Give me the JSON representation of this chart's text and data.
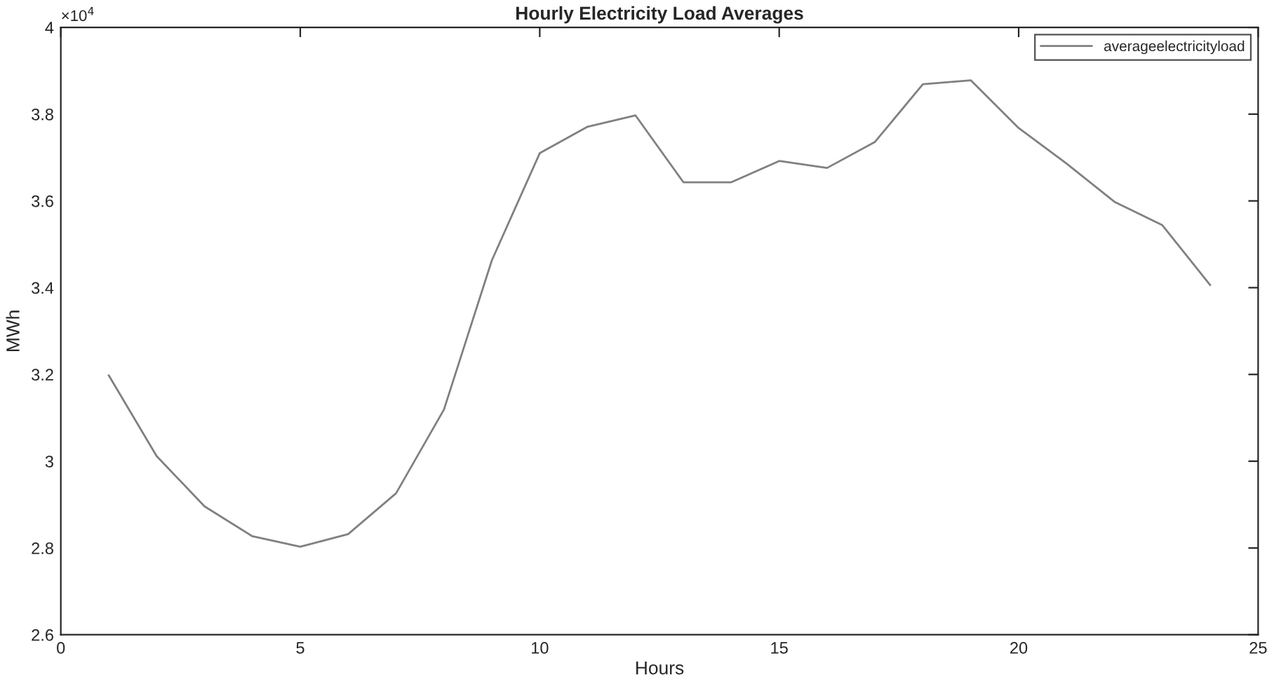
{
  "chart_data": {
    "type": "line",
    "title": "Hourly Electricity Load Averages",
    "xlabel": "Hours",
    "ylabel": "MWh",
    "annotations": [
      "×10$^{4}$"
    ],
    "x": [
      1,
      2,
      3,
      4,
      5,
      6,
      7,
      8,
      9,
      10,
      11,
      12,
      13,
      14,
      15,
      16,
      17,
      18,
      19,
      20,
      21,
      22,
      23,
      24
    ],
    "series": [
      {
        "name": "averageelectricityload",
        "color": "#808080",
        "values": [
          3.198,
          3.012,
          2.896,
          2.827,
          2.803,
          2.832,
          2.926,
          3.119,
          3.463,
          3.71,
          3.771,
          3.797,
          3.643,
          3.643,
          3.692,
          3.676,
          3.736,
          3.869,
          3.878,
          3.768,
          3.686,
          3.598,
          3.544,
          3.406
        ]
      }
    ],
    "xlim": [
      0,
      25
    ],
    "xticks": [
      0,
      5,
      10,
      15,
      20,
      25
    ],
    "ylim": [
      2.6,
      4
    ],
    "yticks": [
      2.6,
      2.8,
      3,
      3.2,
      3.4,
      3.6,
      3.8,
      4
    ],
    "grid": false,
    "legend": "top right",
    "marker": "none",
    "line_style": "solid"
  }
}
